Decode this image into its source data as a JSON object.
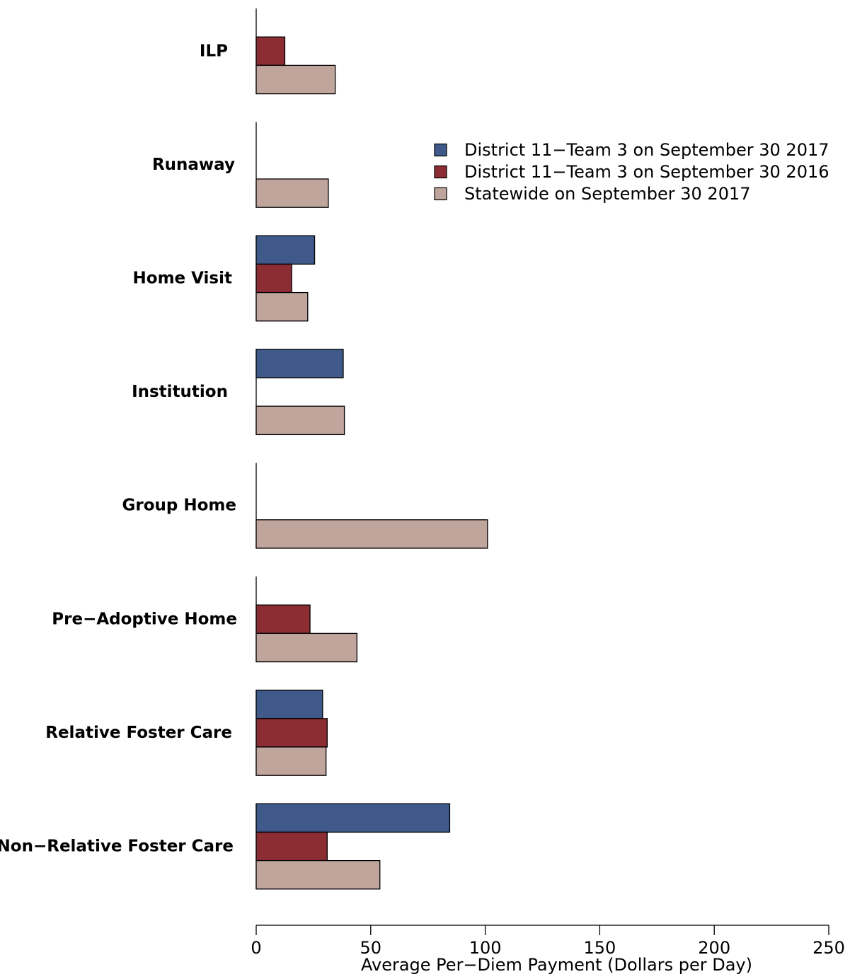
{
  "chart_data": {
    "type": "bar",
    "orientation": "horizontal",
    "categories": [
      "ILP",
      "Runaway",
      "Home Visit",
      "Institution",
      "Group Home",
      "Pre−Adoptive Home",
      "Relative Foster Care",
      "Non−Relative Foster Care"
    ],
    "series": [
      {
        "name": "District 11−Team 3 on September 30 2017",
        "color": "#3f5a8a",
        "values": [
          null,
          null,
          25.5,
          38,
          null,
          null,
          29,
          84.5
        ]
      },
      {
        "name": "District 11−Team 3 on September 30 2016",
        "color": "#8b2d33",
        "values": [
          12.5,
          null,
          15.5,
          null,
          null,
          23.5,
          31,
          31
        ]
      },
      {
        "name": "Statewide on September 30 2017",
        "color": "#c0a59d",
        "values": [
          34.5,
          31.5,
          22.5,
          38.5,
          101,
          44,
          30.5,
          54
        ]
      }
    ],
    "title": "",
    "xlabel": "Average Per−Diem Payment (Dollars per Day)",
    "ylabel": "",
    "xlim": [
      0,
      250
    ],
    "xticks": [
      "0",
      "50",
      "100",
      "150",
      "200",
      "250"
    ],
    "grid": false,
    "legend_position": "top-right"
  }
}
